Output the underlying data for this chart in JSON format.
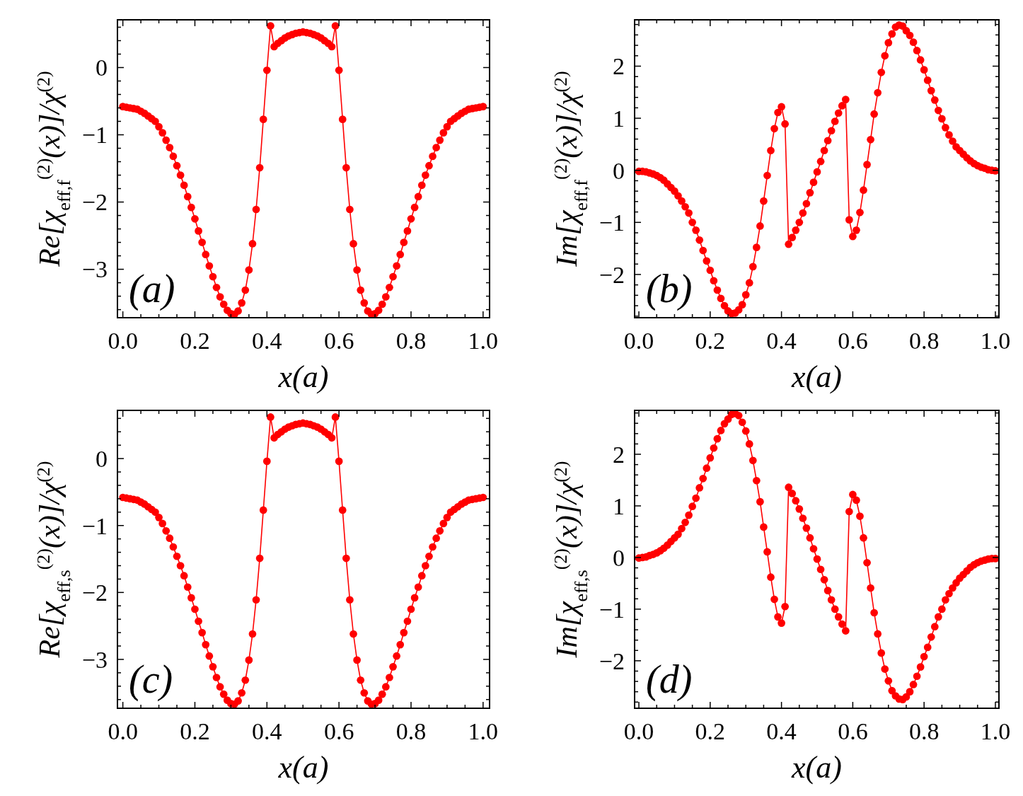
{
  "chart_data": [
    {
      "type": "line",
      "xlabel": "x(a)",
      "ylabel": "Re[χ$_{eff,f}$$^{(2)}$(x)]/χ$^{(2)}$",
      "annotations": [
        "(a)"
      ],
      "marker": "circle",
      "xlim": [
        -0.015,
        1.018
      ],
      "ylim": [
        -3.72,
        0.71
      ],
      "xticks": [
        {
          "value": 0,
          "label": "0.0"
        },
        {
          "value": 0.2,
          "label": "0.2"
        },
        {
          "value": 0.4,
          "label": "0.4"
        },
        {
          "value": 0.6,
          "label": "0.6"
        },
        {
          "value": 0.8,
          "label": "0.8"
        },
        {
          "value": 1,
          "label": "1.0"
        },
        {
          "value": 0.05,
          "label": null
        },
        {
          "value": 0.1,
          "label": null
        },
        {
          "value": 0.15,
          "label": null
        },
        {
          "value": 0.25,
          "label": null
        },
        {
          "value": 0.3,
          "label": null
        },
        {
          "value": 0.35,
          "label": null
        },
        {
          "value": 0.45,
          "label": null
        },
        {
          "value": 0.5,
          "label": null
        },
        {
          "value": 0.55,
          "label": null
        },
        {
          "value": 0.65,
          "label": null
        },
        {
          "value": 0.7,
          "label": null
        },
        {
          "value": 0.75,
          "label": null
        },
        {
          "value": 0.85,
          "label": null
        },
        {
          "value": 0.9,
          "label": null
        },
        {
          "value": 0.95,
          "label": null
        }
      ],
      "yticks": [
        0,
        {
          "value": -1,
          "label": "−1"
        },
        {
          "value": -2,
          "label": "−2"
        },
        {
          "value": -3,
          "label": "−3"
        },
        {
          "value": 0.6,
          "label": null
        },
        {
          "value": 0.4,
          "label": null
        },
        {
          "value": 0.2,
          "label": null
        },
        {
          "value": -0.2,
          "label": null
        },
        {
          "value": -0.4,
          "label": null
        },
        {
          "value": -0.6,
          "label": null
        },
        {
          "value": -0.8,
          "label": null
        },
        {
          "value": -1.2,
          "label": null
        },
        {
          "value": -1.4,
          "label": null
        },
        {
          "value": -1.6,
          "label": null
        },
        {
          "value": -1.8,
          "label": null
        },
        {
          "value": -2.2,
          "label": null
        },
        {
          "value": -2.4,
          "label": null
        },
        {
          "value": -2.6,
          "label": null
        },
        {
          "value": -2.8,
          "label": null
        },
        {
          "value": -3.2,
          "label": null
        },
        {
          "value": -3.4,
          "label": null
        },
        {
          "value": -3.6,
          "label": null
        }
      ],
      "x": [
        0,
        0.01,
        0.02,
        0.03,
        0.04,
        0.05,
        0.06,
        0.07,
        0.08,
        0.09,
        0.1,
        0.11,
        0.12,
        0.13,
        0.14,
        0.15,
        0.16,
        0.17,
        0.18,
        0.19,
        0.2,
        0.21,
        0.22,
        0.23,
        0.24,
        0.25,
        0.26,
        0.27,
        0.28,
        0.29,
        0.3,
        0.31,
        0.32,
        0.33,
        0.34,
        0.35,
        0.36,
        0.37,
        0.38,
        0.39,
        0.4,
        0.41,
        0.42,
        0.43,
        0.44,
        0.45,
        0.46,
        0.47,
        0.48,
        0.49,
        0.5,
        0.51,
        0.52,
        0.53,
        0.54,
        0.55,
        0.56,
        0.57,
        0.58,
        0.59,
        0.6,
        0.61,
        0.62,
        0.63,
        0.64,
        0.65,
        0.66,
        0.67,
        0.68,
        0.69,
        0.7,
        0.71,
        0.72,
        0.73,
        0.74,
        0.75,
        0.76,
        0.77,
        0.78,
        0.79,
        0.8,
        0.81,
        0.82,
        0.83,
        0.84,
        0.85,
        0.86,
        0.87,
        0.88,
        0.89,
        0.9,
        0.91,
        0.92,
        0.93,
        0.94,
        0.95,
        0.96,
        0.97,
        0.98,
        0.99,
        1
      ],
      "series": [
        {
          "color": "#ff0000",
          "values": [
            -0.58,
            -0.59,
            -0.6,
            -0.61,
            -0.62,
            -0.65,
            -0.68,
            -0.72,
            -0.76,
            -0.8,
            -0.88,
            -0.97,
            -1.08,
            -1.19,
            -1.32,
            -1.46,
            -1.6,
            -1.75,
            -1.92,
            -2.08,
            -2.25,
            -2.43,
            -2.6,
            -2.78,
            -2.95,
            -3.11,
            -3.27,
            -3.41,
            -3.52,
            -3.61,
            -3.66,
            -3.67,
            -3.62,
            -3.5,
            -3.31,
            -3.01,
            -2.62,
            -2.11,
            -1.49,
            -0.77,
            -0.04,
            0.62,
            0.31,
            0.36,
            0.4,
            0.44,
            0.47,
            0.49,
            0.51,
            0.52,
            0.53,
            0.52,
            0.51,
            0.49,
            0.47,
            0.44,
            0.4,
            0.36,
            0.31,
            0.62,
            -0.04,
            -0.77,
            -1.49,
            -2.11,
            -2.62,
            -3.01,
            -3.31,
            -3.5,
            -3.62,
            -3.67,
            -3.66,
            -3.61,
            -3.52,
            -3.41,
            -3.27,
            -3.11,
            -2.95,
            -2.78,
            -2.6,
            -2.43,
            -2.25,
            -2.08,
            -1.92,
            -1.75,
            -1.6,
            -1.46,
            -1.32,
            -1.19,
            -1.08,
            -0.97,
            -0.88,
            -0.8,
            -0.76,
            -0.72,
            -0.68,
            -0.65,
            -0.62,
            -0.61,
            -0.6,
            -0.59,
            -0.58
          ]
        }
      ]
    },
    {
      "type": "line",
      "xlabel": "x(a)",
      "ylabel": "Im[χ$_{eff,f}$$^{(2)}$(x)]/χ$^{(2)}$",
      "annotations": [
        "(b)"
      ],
      "marker": "circle",
      "xlim": [
        -0.012,
        1.01
      ],
      "ylim": [
        -2.83,
        2.89
      ],
      "xticks": [
        {
          "value": 0,
          "label": "0.0"
        },
        {
          "value": 0.2,
          "label": "0.2"
        },
        {
          "value": 0.4,
          "label": "0.4"
        },
        {
          "value": 0.6,
          "label": "0.6"
        },
        {
          "value": 0.8,
          "label": "0.8"
        },
        {
          "value": 1,
          "label": "1.0"
        },
        {
          "value": 0.05,
          "label": null
        },
        {
          "value": 0.1,
          "label": null
        },
        {
          "value": 0.15,
          "label": null
        },
        {
          "value": 0.25,
          "label": null
        },
        {
          "value": 0.3,
          "label": null
        },
        {
          "value": 0.35,
          "label": null
        },
        {
          "value": 0.45,
          "label": null
        },
        {
          "value": 0.5,
          "label": null
        },
        {
          "value": 0.55,
          "label": null
        },
        {
          "value": 0.65,
          "label": null
        },
        {
          "value": 0.7,
          "label": null
        },
        {
          "value": 0.75,
          "label": null
        },
        {
          "value": 0.85,
          "label": null
        },
        {
          "value": 0.9,
          "label": null
        },
        {
          "value": 0.95,
          "label": null
        }
      ],
      "yticks": [
        {
          "value": -2,
          "label": "−2"
        },
        {
          "value": -1,
          "label": "−1"
        },
        0,
        1,
        2,
        {
          "value": -2.8,
          "label": null
        },
        {
          "value": -2.6,
          "label": null
        },
        {
          "value": -2.4,
          "label": null
        },
        {
          "value": -2.2,
          "label": null
        },
        {
          "value": -1.8,
          "label": null
        },
        {
          "value": -1.6,
          "label": null
        },
        {
          "value": -1.4,
          "label": null
        },
        {
          "value": -1.2,
          "label": null
        },
        {
          "value": -0.8,
          "label": null
        },
        {
          "value": -0.6,
          "label": null
        },
        {
          "value": -0.4,
          "label": null
        },
        {
          "value": -0.2,
          "label": null
        },
        {
          "value": 0.2,
          "label": null
        },
        {
          "value": 0.4,
          "label": null
        },
        {
          "value": 0.6,
          "label": null
        },
        {
          "value": 0.8,
          "label": null
        },
        {
          "value": 1.2,
          "label": null
        },
        {
          "value": 1.4,
          "label": null
        },
        {
          "value": 1.6,
          "label": null
        },
        {
          "value": 1.8,
          "label": null
        },
        {
          "value": 2.2,
          "label": null
        },
        {
          "value": 2.4,
          "label": null
        },
        {
          "value": 2.6,
          "label": null
        },
        {
          "value": 2.8,
          "label": null
        }
      ],
      "x": [
        0,
        0.01,
        0.02,
        0.03,
        0.04,
        0.05,
        0.06,
        0.07,
        0.08,
        0.09,
        0.1,
        0.11,
        0.12,
        0.13,
        0.14,
        0.15,
        0.16,
        0.17,
        0.18,
        0.19,
        0.2,
        0.21,
        0.22,
        0.23,
        0.24,
        0.25,
        0.26,
        0.27,
        0.28,
        0.29,
        0.3,
        0.31,
        0.32,
        0.33,
        0.34,
        0.35,
        0.36,
        0.37,
        0.38,
        0.39,
        0.4,
        0.41,
        0.42,
        0.43,
        0.44,
        0.45,
        0.46,
        0.47,
        0.48,
        0.49,
        0.5,
        0.51,
        0.52,
        0.53,
        0.54,
        0.55,
        0.56,
        0.57,
        0.58,
        0.59,
        0.6,
        0.61,
        0.62,
        0.63,
        0.64,
        0.65,
        0.66,
        0.67,
        0.68,
        0.69,
        0.7,
        0.71,
        0.72,
        0.73,
        0.74,
        0.75,
        0.76,
        0.77,
        0.78,
        0.79,
        0.8,
        0.81,
        0.82,
        0.83,
        0.84,
        0.85,
        0.86,
        0.87,
        0.88,
        0.89,
        0.9,
        0.91,
        0.92,
        0.93,
        0.94,
        0.95,
        0.96,
        0.97,
        0.98,
        0.99,
        1
      ],
      "series": [
        {
          "color": "#ff0000",
          "values": [
            -0.02,
            -0.02,
            -0.03,
            -0.05,
            -0.07,
            -0.1,
            -0.14,
            -0.19,
            -0.26,
            -0.33,
            -0.4,
            -0.49,
            -0.59,
            -0.7,
            -0.82,
            -1,
            -1.15,
            -1.34,
            -1.54,
            -1.74,
            -1.92,
            -2.12,
            -2.3,
            -2.46,
            -2.6,
            -2.7,
            -2.75,
            -2.74,
            -2.68,
            -2.58,
            -2.39,
            -2.16,
            -1.85,
            -1.48,
            -1.07,
            -0.59,
            -0.1,
            0.38,
            0.8,
            1.11,
            1.22,
            0.89,
            -1.42,
            -1.29,
            -1.15,
            -1,
            -0.82,
            -0.64,
            -0.43,
            -0.23,
            -0.03,
            0.17,
            0.38,
            0.57,
            0.76,
            0.94,
            1.1,
            1.24,
            1.36,
            -0.95,
            -1.27,
            -1.15,
            -0.81,
            -0.38,
            0.11,
            0.59,
            1.08,
            1.49,
            1.88,
            2.2,
            2.45,
            2.62,
            2.75,
            2.79,
            2.77,
            2.68,
            2.59,
            2.46,
            2.3,
            2.12,
            1.93,
            1.73,
            1.53,
            1.35,
            1.15,
            0.99,
            0.82,
            0.68,
            0.56,
            0.45,
            0.38,
            0.31,
            0.24,
            0.18,
            0.13,
            0.09,
            0.06,
            0.04,
            0.01,
            0,
            -0.01
          ]
        }
      ]
    },
    {
      "type": "line",
      "xlabel": "x(a)",
      "ylabel": "Re[χ$_{eff,s}$$^{(2)}$(x)]/χ$^{(2)}$",
      "annotations": [
        "(c)"
      ],
      "marker": "circle",
      "xlim": [
        -0.015,
        1.018
      ],
      "ylim": [
        -3.73,
        0.72
      ],
      "xticks": [
        {
          "value": 0,
          "label": "0.0"
        },
        {
          "value": 0.2,
          "label": "0.2"
        },
        {
          "value": 0.4,
          "label": "0.4"
        },
        {
          "value": 0.6,
          "label": "0.6"
        },
        {
          "value": 0.8,
          "label": "0.8"
        },
        {
          "value": 1,
          "label": "1.0"
        },
        {
          "value": 0.05,
          "label": null
        },
        {
          "value": 0.1,
          "label": null
        },
        {
          "value": 0.15,
          "label": null
        },
        {
          "value": 0.25,
          "label": null
        },
        {
          "value": 0.3,
          "label": null
        },
        {
          "value": 0.35,
          "label": null
        },
        {
          "value": 0.45,
          "label": null
        },
        {
          "value": 0.5,
          "label": null
        },
        {
          "value": 0.55,
          "label": null
        },
        {
          "value": 0.65,
          "label": null
        },
        {
          "value": 0.7,
          "label": null
        },
        {
          "value": 0.75,
          "label": null
        },
        {
          "value": 0.85,
          "label": null
        },
        {
          "value": 0.9,
          "label": null
        },
        {
          "value": 0.95,
          "label": null
        }
      ],
      "yticks": [
        0,
        {
          "value": -1,
          "label": "−1"
        },
        {
          "value": -2,
          "label": "−2"
        },
        {
          "value": -3,
          "label": "−3"
        },
        {
          "value": 0.6,
          "label": null
        },
        {
          "value": 0.4,
          "label": null
        },
        {
          "value": 0.2,
          "label": null
        },
        {
          "value": -0.2,
          "label": null
        },
        {
          "value": -0.4,
          "label": null
        },
        {
          "value": -0.6,
          "label": null
        },
        {
          "value": -0.8,
          "label": null
        },
        {
          "value": -1.2,
          "label": null
        },
        {
          "value": -1.4,
          "label": null
        },
        {
          "value": -1.6,
          "label": null
        },
        {
          "value": -1.8,
          "label": null
        },
        {
          "value": -2.2,
          "label": null
        },
        {
          "value": -2.4,
          "label": null
        },
        {
          "value": -2.6,
          "label": null
        },
        {
          "value": -2.8,
          "label": null
        },
        {
          "value": -3.2,
          "label": null
        },
        {
          "value": -3.4,
          "label": null
        },
        {
          "value": -3.6,
          "label": null
        }
      ],
      "x": [
        0,
        0.01,
        0.02,
        0.03,
        0.04,
        0.05,
        0.06,
        0.07,
        0.08,
        0.09,
        0.1,
        0.11,
        0.12,
        0.13,
        0.14,
        0.15,
        0.16,
        0.17,
        0.18,
        0.19,
        0.2,
        0.21,
        0.22,
        0.23,
        0.24,
        0.25,
        0.26,
        0.27,
        0.28,
        0.29,
        0.3,
        0.31,
        0.32,
        0.33,
        0.34,
        0.35,
        0.36,
        0.37,
        0.38,
        0.39,
        0.4,
        0.41,
        0.42,
        0.43,
        0.44,
        0.45,
        0.46,
        0.47,
        0.48,
        0.49,
        0.5,
        0.51,
        0.52,
        0.53,
        0.54,
        0.55,
        0.56,
        0.57,
        0.58,
        0.59,
        0.6,
        0.61,
        0.62,
        0.63,
        0.64,
        0.65,
        0.66,
        0.67,
        0.68,
        0.69,
        0.7,
        0.71,
        0.72,
        0.73,
        0.74,
        0.75,
        0.76,
        0.77,
        0.78,
        0.79,
        0.8,
        0.81,
        0.82,
        0.83,
        0.84,
        0.85,
        0.86,
        0.87,
        0.88,
        0.89,
        0.9,
        0.91,
        0.92,
        0.93,
        0.94,
        0.95,
        0.96,
        0.97,
        0.98,
        0.99,
        1
      ],
      "series": [
        {
          "color": "#ff0000",
          "values": [
            -0.58,
            -0.59,
            -0.6,
            -0.61,
            -0.62,
            -0.65,
            -0.68,
            -0.72,
            -0.76,
            -0.8,
            -0.88,
            -0.97,
            -1.08,
            -1.19,
            -1.32,
            -1.46,
            -1.6,
            -1.75,
            -1.92,
            -2.08,
            -2.25,
            -2.43,
            -2.6,
            -2.78,
            -2.95,
            -3.11,
            -3.27,
            -3.41,
            -3.52,
            -3.61,
            -3.66,
            -3.67,
            -3.62,
            -3.5,
            -3.31,
            -3.01,
            -2.62,
            -2.11,
            -1.49,
            -0.77,
            -0.04,
            0.62,
            0.31,
            0.36,
            0.4,
            0.44,
            0.47,
            0.49,
            0.51,
            0.52,
            0.53,
            0.52,
            0.51,
            0.49,
            0.47,
            0.44,
            0.4,
            0.36,
            0.31,
            0.62,
            -0.04,
            -0.77,
            -1.49,
            -2.11,
            -2.62,
            -3.01,
            -3.31,
            -3.5,
            -3.62,
            -3.67,
            -3.66,
            -3.61,
            -3.52,
            -3.41,
            -3.27,
            -3.11,
            -2.95,
            -2.78,
            -2.6,
            -2.43,
            -2.25,
            -2.08,
            -1.92,
            -1.75,
            -1.6,
            -1.46,
            -1.32,
            -1.19,
            -1.08,
            -0.97,
            -0.88,
            -0.8,
            -0.76,
            -0.72,
            -0.68,
            -0.65,
            -0.62,
            -0.61,
            -0.6,
            -0.59,
            -0.58
          ]
        }
      ]
    },
    {
      "type": "line",
      "xlabel": "x(a)",
      "ylabel": "Im[χ$_{eff,s}$$^{(2)}$(x)]/χ$^{(2)}$",
      "annotations": [
        "(d)"
      ],
      "marker": "circle",
      "xlim": [
        -0.012,
        1.01
      ],
      "ylim": [
        -2.92,
        2.85
      ],
      "xticks": [
        {
          "value": 0,
          "label": "0.0"
        },
        {
          "value": 0.2,
          "label": "0.2"
        },
        {
          "value": 0.4,
          "label": "0.4"
        },
        {
          "value": 0.6,
          "label": "0.6"
        },
        {
          "value": 0.8,
          "label": "0.8"
        },
        {
          "value": 1,
          "label": "1.0"
        },
        {
          "value": 0.05,
          "label": null
        },
        {
          "value": 0.1,
          "label": null
        },
        {
          "value": 0.15,
          "label": null
        },
        {
          "value": 0.25,
          "label": null
        },
        {
          "value": 0.3,
          "label": null
        },
        {
          "value": 0.35,
          "label": null
        },
        {
          "value": 0.45,
          "label": null
        },
        {
          "value": 0.5,
          "label": null
        },
        {
          "value": 0.55,
          "label": null
        },
        {
          "value": 0.65,
          "label": null
        },
        {
          "value": 0.7,
          "label": null
        },
        {
          "value": 0.75,
          "label": null
        },
        {
          "value": 0.85,
          "label": null
        },
        {
          "value": 0.9,
          "label": null
        },
        {
          "value": 0.95,
          "label": null
        }
      ],
      "yticks": [
        {
          "value": -2,
          "label": "−2"
        },
        {
          "value": -1,
          "label": "−1"
        },
        0,
        1,
        2,
        {
          "value": -2.8,
          "label": null
        },
        {
          "value": -2.6,
          "label": null
        },
        {
          "value": -2.4,
          "label": null
        },
        {
          "value": -2.2,
          "label": null
        },
        {
          "value": -1.8,
          "label": null
        },
        {
          "value": -1.6,
          "label": null
        },
        {
          "value": -1.4,
          "label": null
        },
        {
          "value": -1.2,
          "label": null
        },
        {
          "value": -0.8,
          "label": null
        },
        {
          "value": -0.6,
          "label": null
        },
        {
          "value": -0.4,
          "label": null
        },
        {
          "value": -0.2,
          "label": null
        },
        {
          "value": 0.2,
          "label": null
        },
        {
          "value": 0.4,
          "label": null
        },
        {
          "value": 0.6,
          "label": null
        },
        {
          "value": 0.8,
          "label": null
        },
        {
          "value": 1.2,
          "label": null
        },
        {
          "value": 1.4,
          "label": null
        },
        {
          "value": 1.6,
          "label": null
        },
        {
          "value": 1.8,
          "label": null
        },
        {
          "value": 2.2,
          "label": null
        },
        {
          "value": 2.4,
          "label": null
        },
        {
          "value": 2.6,
          "label": null
        },
        {
          "value": 2.8,
          "label": null
        }
      ],
      "x": [
        0,
        0.01,
        0.02,
        0.03,
        0.04,
        0.05,
        0.06,
        0.07,
        0.08,
        0.09,
        0.1,
        0.11,
        0.12,
        0.13,
        0.14,
        0.15,
        0.16,
        0.17,
        0.18,
        0.19,
        0.2,
        0.21,
        0.22,
        0.23,
        0.24,
        0.25,
        0.26,
        0.27,
        0.28,
        0.29,
        0.3,
        0.31,
        0.32,
        0.33,
        0.34,
        0.35,
        0.36,
        0.37,
        0.38,
        0.39,
        0.4,
        0.41,
        0.42,
        0.43,
        0.44,
        0.45,
        0.46,
        0.47,
        0.48,
        0.49,
        0.5,
        0.51,
        0.52,
        0.53,
        0.54,
        0.55,
        0.56,
        0.57,
        0.58,
        0.59,
        0.6,
        0.61,
        0.62,
        0.63,
        0.64,
        0.65,
        0.66,
        0.67,
        0.68,
        0.69,
        0.7,
        0.71,
        0.72,
        0.73,
        0.74,
        0.75,
        0.76,
        0.77,
        0.78,
        0.79,
        0.8,
        0.81,
        0.82,
        0.83,
        0.84,
        0.85,
        0.86,
        0.87,
        0.88,
        0.89,
        0.9,
        0.91,
        0.92,
        0.93,
        0.94,
        0.95,
        0.96,
        0.97,
        0.98,
        0.99,
        1
      ],
      "series": [
        {
          "color": "#ff0000",
          "values": [
            -0.01,
            0,
            0.01,
            0.04,
            0.06,
            0.09,
            0.13,
            0.18,
            0.24,
            0.31,
            0.38,
            0.45,
            0.56,
            0.68,
            0.82,
            0.99,
            1.15,
            1.35,
            1.53,
            1.73,
            1.93,
            2.12,
            2.3,
            2.46,
            2.59,
            2.68,
            2.77,
            2.79,
            2.75,
            2.62,
            2.45,
            2.2,
            1.88,
            1.49,
            1.08,
            0.59,
            0.11,
            -0.38,
            -0.81,
            -1.15,
            -1.27,
            -0.95,
            1.36,
            1.24,
            1.1,
            0.94,
            0.76,
            0.57,
            0.38,
            0.17,
            -0.03,
            -0.23,
            -0.43,
            -0.64,
            -0.82,
            -1,
            -1.15,
            -1.29,
            -1.42,
            0.89,
            1.22,
            1.11,
            0.8,
            0.38,
            -0.1,
            -0.59,
            -1.07,
            -1.48,
            -1.85,
            -2.16,
            -2.39,
            -2.58,
            -2.68,
            -2.74,
            -2.75,
            -2.7,
            -2.6,
            -2.46,
            -2.3,
            -2.12,
            -1.92,
            -1.74,
            -1.54,
            -1.34,
            -1.15,
            -1,
            -0.82,
            -0.7,
            -0.59,
            -0.49,
            -0.4,
            -0.33,
            -0.26,
            -0.19,
            -0.14,
            -0.1,
            -0.07,
            -0.05,
            -0.03,
            -0.02,
            -0.02
          ]
        }
      ]
    }
  ]
}
